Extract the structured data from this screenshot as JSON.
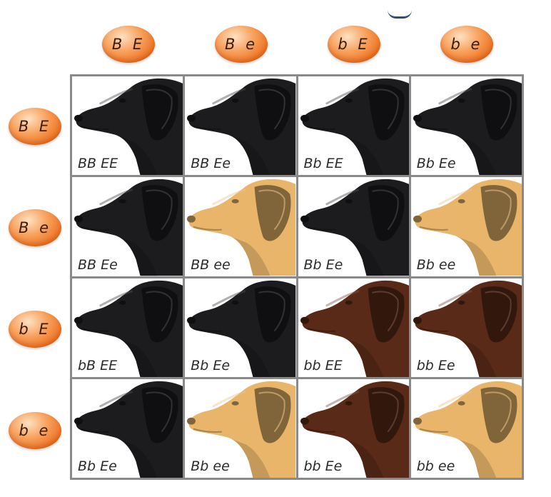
{
  "column_headers": [
    {
      "label": "B E"
    },
    {
      "label": "B e"
    },
    {
      "label": "b E"
    },
    {
      "label": "b e"
    }
  ],
  "row_headers": [
    {
      "label": "B E"
    },
    {
      "label": "B e"
    },
    {
      "label": "b E"
    },
    {
      "label": "b e"
    }
  ],
  "coat_colors": {
    "black": "#1c1c1e",
    "yellow": "#e8b56a",
    "chocolate": "#5a2a18"
  },
  "cells": [
    [
      {
        "genotype": "BB EE",
        "coat": "black"
      },
      {
        "genotype": "BB Ee",
        "coat": "black"
      },
      {
        "genotype": "Bb EE",
        "coat": "black"
      },
      {
        "genotype": "Bb Ee",
        "coat": "black"
      }
    ],
    [
      {
        "genotype": "BB Ee",
        "coat": "black"
      },
      {
        "genotype": "BB ee",
        "coat": "yellow"
      },
      {
        "genotype": "Bb Ee",
        "coat": "black"
      },
      {
        "genotype": "Bb ee",
        "coat": "yellow"
      }
    ],
    [
      {
        "genotype": "bB EE",
        "coat": "black"
      },
      {
        "genotype": "Bb Ee",
        "coat": "black"
      },
      {
        "genotype": "bb EE",
        "coat": "chocolate"
      },
      {
        "genotype": "bb Ee",
        "coat": "chocolate"
      }
    ],
    [
      {
        "genotype": "Bb Ee",
        "coat": "black"
      },
      {
        "genotype": "Bb ee",
        "coat": "yellow"
      },
      {
        "genotype": "bb Ee",
        "coat": "chocolate"
      },
      {
        "genotype": "bb ee",
        "coat": "yellow"
      }
    ]
  ]
}
